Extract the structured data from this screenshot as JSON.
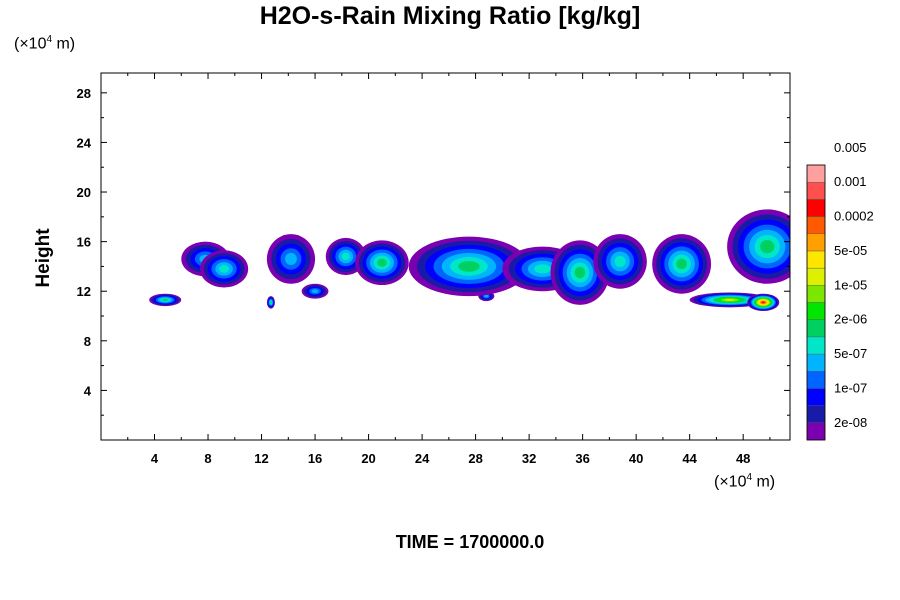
{
  "chart_data": {
    "type": "heatmap",
    "title": "H2O-s-Rain Mixing Ratio [kg/kg]",
    "ylabel": "Height",
    "y_unit_prefix": "(×10",
    "y_unit_exp": "4",
    "y_unit_suffix": " m)",
    "x_unit_prefix": "(×10",
    "x_unit_exp": "4",
    "x_unit_suffix": " m)",
    "xlim": [
      0,
      51.5
    ],
    "ylim": [
      0,
      29.6
    ],
    "x_ticks": [
      4,
      8,
      12,
      16,
      20,
      24,
      28,
      32,
      36,
      40,
      44,
      48
    ],
    "y_ticks": [
      4,
      8,
      12,
      16,
      20,
      24,
      28
    ],
    "colorbar": {
      "levels": [
        "2e-08",
        "1e-07",
        "5e-07",
        "2e-06",
        "1e-05",
        "5e-05",
        "0.0002",
        "0.001",
        "0.005"
      ],
      "colors": [
        "#7a00b0",
        "#1a1aa8",
        "#0000ff",
        "#0064ff",
        "#00b4ff",
        "#00e6c8",
        "#00d060",
        "#00e600",
        "#7ce600",
        "#dcf000",
        "#ffe600",
        "#ffa000",
        "#ff5a00",
        "#ff0000",
        "#ff5050",
        "#ffa0a0"
      ]
    },
    "cells": [
      {
        "x": 4.8,
        "y": 11.3,
        "w": 1.2,
        "h": 0.5,
        "level": 6
      },
      {
        "x": 7.8,
        "y": 14.6,
        "w": 1.8,
        "h": 1.4,
        "level": 4
      },
      {
        "x": 9.2,
        "y": 13.8,
        "w": 1.8,
        "h": 1.5,
        "level": 5
      },
      {
        "x": 12.7,
        "y": 11.1,
        "w": 0.3,
        "h": 0.5,
        "level": 6
      },
      {
        "x": 14.2,
        "y": 14.6,
        "w": 1.8,
        "h": 2.0,
        "level": 4
      },
      {
        "x": 16.0,
        "y": 12.0,
        "w": 1.0,
        "h": 0.6,
        "level": 4
      },
      {
        "x": 18.3,
        "y": 14.8,
        "w": 1.5,
        "h": 1.5,
        "level": 5
      },
      {
        "x": 21.0,
        "y": 14.3,
        "w": 2.0,
        "h": 1.8,
        "level": 6
      },
      {
        "x": 28.8,
        "y": 11.6,
        "w": 0.6,
        "h": 0.4,
        "level": 4
      },
      {
        "x": 27.5,
        "y": 14.0,
        "w": 4.5,
        "h": 2.4,
        "level": 6
      },
      {
        "x": 33.0,
        "y": 13.8,
        "w": 3.0,
        "h": 1.8,
        "level": 5
      },
      {
        "x": 35.8,
        "y": 13.5,
        "w": 2.2,
        "h": 2.6,
        "level": 6
      },
      {
        "x": 38.8,
        "y": 14.4,
        "w": 2.0,
        "h": 2.2,
        "level": 5
      },
      {
        "x": 43.4,
        "y": 14.2,
        "w": 2.2,
        "h": 2.4,
        "level": 6
      },
      {
        "x": 47.0,
        "y": 11.3,
        "w": 3.0,
        "h": 0.6,
        "level": 9
      },
      {
        "x": 49.5,
        "y": 11.1,
        "w": 1.2,
        "h": 0.7,
        "level": 13
      },
      {
        "x": 49.8,
        "y": 15.6,
        "w": 3.0,
        "h": 3.0,
        "level": 6
      }
    ]
  },
  "time_label": "TIME = 1700000.0"
}
